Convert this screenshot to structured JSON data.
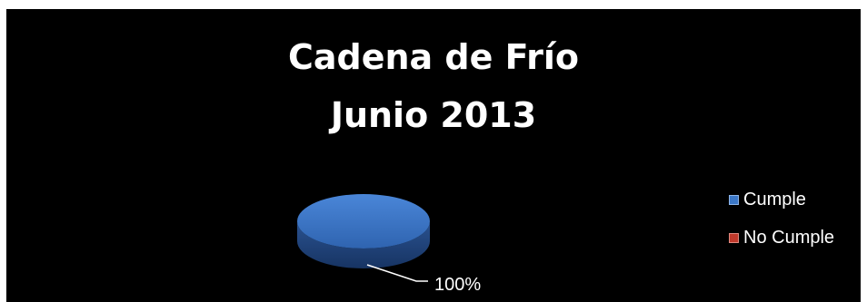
{
  "chart_data": {
    "type": "pie",
    "title_lines": [
      "Cadena de Frío",
      "Junio 2013"
    ],
    "categories": [
      "Cumple",
      "No Cumple"
    ],
    "values": [
      100,
      0
    ],
    "data_labels": [
      "100%"
    ],
    "colors": [
      "#3C78C8",
      "#C0392B"
    ],
    "legend_position": "right",
    "background": "#000000"
  }
}
